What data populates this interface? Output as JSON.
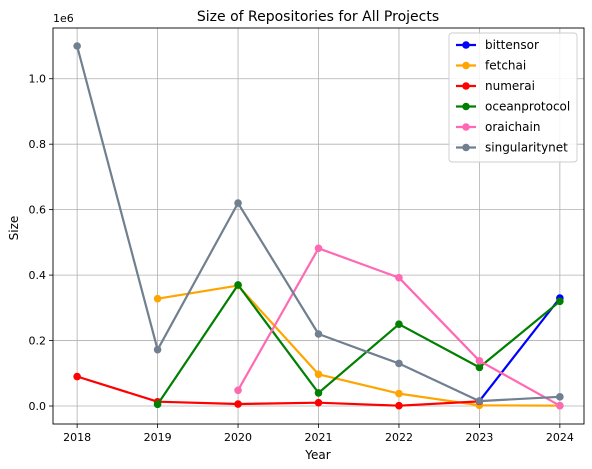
{
  "chart_data": {
    "type": "line",
    "title": "Size of Repositories for All Projects",
    "xlabel": "Year",
    "ylabel": "Size",
    "y_multiplier_label": "1e6",
    "xlim": [
      2017.7,
      2024.3
    ],
    "ylim": [
      -55000,
      1155000
    ],
    "x_ticks": [
      2018,
      2019,
      2020,
      2021,
      2022,
      2023,
      2024
    ],
    "y_ticks": [
      0,
      200000,
      400000,
      600000,
      800000,
      1000000
    ],
    "y_tick_labels": [
      "0.0",
      "0.2",
      "0.4",
      "0.6",
      "0.8",
      "1.0"
    ],
    "grid": true,
    "legend_position": "top-right",
    "series": [
      {
        "name": "bittensor",
        "color": "#0000ff",
        "x": [
          2023,
          2024
        ],
        "values": [
          15000,
          330000
        ]
      },
      {
        "name": "fetchai",
        "color": "#ffa500",
        "x": [
          2019,
          2020,
          2021,
          2022,
          2023,
          2024
        ],
        "values": [
          328000,
          368000,
          97000,
          38000,
          2000,
          1000
        ]
      },
      {
        "name": "numerai",
        "color": "#ff0000",
        "x": [
          2018,
          2019,
          2020,
          2021,
          2022,
          2023
        ],
        "values": [
          90000,
          13000,
          6000,
          10000,
          1000,
          14000
        ]
      },
      {
        "name": "oceanprotocol",
        "color": "#008000",
        "x": [
          2019,
          2020,
          2021,
          2022,
          2023,
          2024
        ],
        "values": [
          5000,
          370000,
          40000,
          250000,
          118000,
          320000
        ]
      },
      {
        "name": "oraichain",
        "color": "#ff69b4",
        "x": [
          2020,
          2021,
          2022,
          2023,
          2024
        ],
        "values": [
          48000,
          482000,
          392000,
          138000,
          1000
        ]
      },
      {
        "name": "singularitynet",
        "color": "#708090",
        "x": [
          2018,
          2019,
          2020,
          2021,
          2022,
          2023,
          2024
        ],
        "values": [
          1100000,
          172000,
          620000,
          220000,
          130000,
          15000,
          28000
        ]
      }
    ]
  }
}
